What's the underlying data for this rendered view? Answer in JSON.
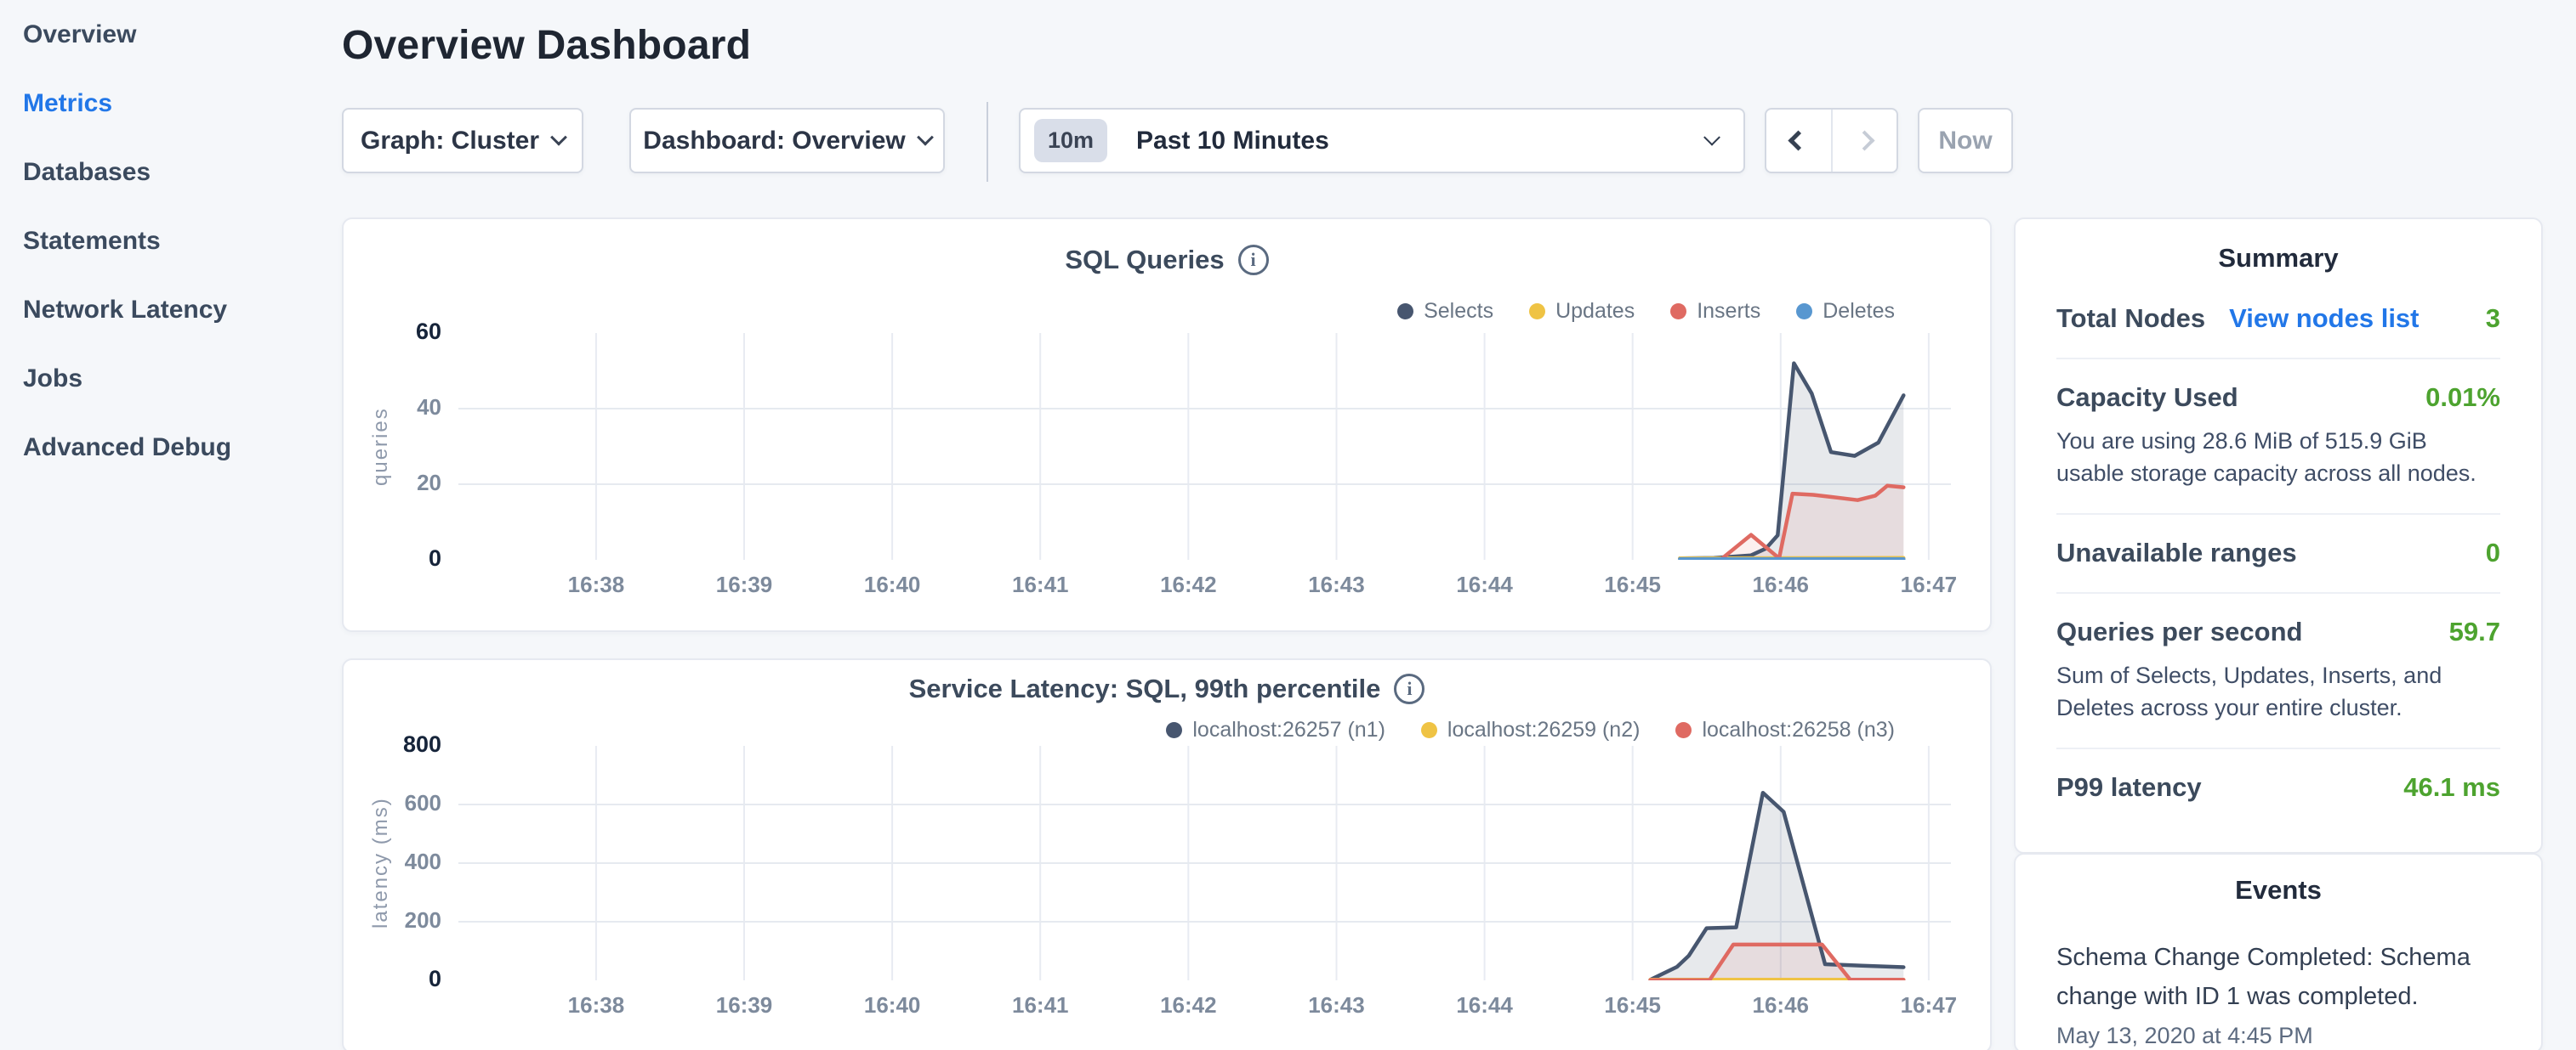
{
  "colors": {
    "accent_blue": "#2277e8",
    "value_green": "#4da32f",
    "series_dark": "#47566f",
    "series_yellow": "#efc344",
    "series_red": "#df6a62",
    "series_blue": "#5897d0",
    "page_background": "#f5f7fa"
  },
  "sidebar": {
    "items": [
      {
        "label": "Overview",
        "active": false
      },
      {
        "label": "Metrics",
        "active": true
      },
      {
        "label": "Databases",
        "active": false
      },
      {
        "label": "Statements",
        "active": false
      },
      {
        "label": "Network Latency",
        "active": false
      },
      {
        "label": "Jobs",
        "active": false
      },
      {
        "label": "Advanced Debug",
        "active": false
      }
    ]
  },
  "header": {
    "title": "Overview Dashboard"
  },
  "controls": {
    "graph_dropdown": "Graph: Cluster",
    "dashboard_dropdown": "Dashboard: Overview",
    "time_badge": "10m",
    "time_label": "Past 10 Minutes",
    "now_label": "Now"
  },
  "icons": {
    "info": "i"
  },
  "chart_data": [
    {
      "type": "area",
      "title": "SQL Queries",
      "ylabel": "queries",
      "ylim": [
        0,
        60
      ],
      "yticks": [
        0,
        20,
        40,
        60
      ],
      "xlim": [
        37.07,
        47.15
      ],
      "xticks": [
        {
          "v": 38,
          "label": "16:38"
        },
        {
          "v": 39,
          "label": "16:39"
        },
        {
          "v": 40,
          "label": "16:40"
        },
        {
          "v": 41,
          "label": "16:41"
        },
        {
          "v": 42,
          "label": "16:42"
        },
        {
          "v": 43,
          "label": "16:43"
        },
        {
          "v": 44,
          "label": "16:44"
        },
        {
          "v": 45,
          "label": "16:45"
        },
        {
          "v": 46,
          "label": "16:46"
        },
        {
          "v": 47,
          "label": "16:47"
        }
      ],
      "grid": true,
      "legend_position": "top-right",
      "series": [
        {
          "name": "Selects",
          "color": "#47566f",
          "fill": "rgba(71,86,111,0.13)",
          "points": [
            [
              45.32,
              0.4
            ],
            [
              45.55,
              0.5
            ],
            [
              45.8,
              1.2
            ],
            [
              45.9,
              3
            ],
            [
              45.98,
              6.5
            ],
            [
              46.09,
              52
            ],
            [
              46.21,
              44
            ],
            [
              46.34,
              28.5
            ],
            [
              46.5,
              27.5
            ],
            [
              46.66,
              31
            ],
            [
              46.83,
              43.5
            ]
          ]
        },
        {
          "name": "Updates",
          "color": "#efc344",
          "fill": null,
          "points": [
            [
              45.32,
              0.4
            ],
            [
              46.83,
              0.5
            ]
          ]
        },
        {
          "name": "Inserts",
          "color": "#df6a62",
          "fill": "rgba(223,106,98,0.10)",
          "points": [
            [
              45.6,
              0.2
            ],
            [
              45.8,
              6.6
            ],
            [
              45.99,
              0.4
            ],
            [
              46.08,
              17.5
            ],
            [
              46.22,
              17.2
            ],
            [
              46.35,
              16.6
            ],
            [
              46.52,
              15.8
            ],
            [
              46.64,
              17
            ],
            [
              46.72,
              19.6
            ],
            [
              46.83,
              19.2
            ]
          ]
        },
        {
          "name": "Deletes",
          "color": "#5897d0",
          "fill": null,
          "points": [
            [
              45.32,
              0.2
            ],
            [
              46.83,
              0.2
            ]
          ]
        }
      ]
    },
    {
      "type": "area",
      "title": "Service Latency: SQL, 99th percentile",
      "ylabel": "latency (ms)",
      "ylim": [
        0,
        800
      ],
      "yticks": [
        0,
        200,
        400,
        600,
        800
      ],
      "xlim": [
        37.07,
        47.15
      ],
      "xticks": [
        {
          "v": 38,
          "label": "16:38"
        },
        {
          "v": 39,
          "label": "16:39"
        },
        {
          "v": 40,
          "label": "16:40"
        },
        {
          "v": 41,
          "label": "16:41"
        },
        {
          "v": 42,
          "label": "16:42"
        },
        {
          "v": 43,
          "label": "16:43"
        },
        {
          "v": 44,
          "label": "16:44"
        },
        {
          "v": 45,
          "label": "16:45"
        },
        {
          "v": 46,
          "label": "16:46"
        },
        {
          "v": 47,
          "label": "16:47"
        }
      ],
      "grid": true,
      "legend_position": "top-right",
      "series": [
        {
          "name": "localhost:26257 (n1)",
          "color": "#47566f",
          "fill": "rgba(71,86,111,0.13)",
          "points": [
            [
              45.12,
              2
            ],
            [
              45.3,
              46
            ],
            [
              45.38,
              84
            ],
            [
              45.5,
              178
            ],
            [
              45.7,
              181
            ],
            [
              45.88,
              640
            ],
            [
              46.02,
              575
            ],
            [
              46.3,
              55
            ],
            [
              46.55,
              50
            ],
            [
              46.83,
              45
            ]
          ]
        },
        {
          "name": "localhost:26259 (n2)",
          "color": "#efc344",
          "fill": null,
          "points": [
            [
              45.12,
              2
            ],
            [
              46.83,
              2
            ]
          ]
        },
        {
          "name": "localhost:26258 (n3)",
          "color": "#df6a62",
          "fill": "rgba(223,106,98,0.10)",
          "points": [
            [
              45.12,
              1
            ],
            [
              45.52,
              1
            ],
            [
              45.68,
              122
            ],
            [
              46.28,
              122
            ],
            [
              46.47,
              2
            ],
            [
              46.83,
              2
            ]
          ]
        }
      ]
    }
  ],
  "summary": {
    "title": "Summary",
    "rows": [
      {
        "label": "Total Nodes",
        "link": "View nodes list",
        "value": "3"
      },
      {
        "label": "Capacity Used",
        "value": "0.01%",
        "description": "You are using 28.6 MiB of 515.9 GiB usable storage capacity across all nodes."
      },
      {
        "label": "Unavailable ranges",
        "value": "0"
      },
      {
        "label": "Queries per second",
        "value": "59.7",
        "description": "Sum of Selects, Updates, Inserts, and Deletes across your entire cluster."
      },
      {
        "label": "P99 latency",
        "value": "46.1 ms"
      }
    ]
  },
  "events": {
    "title": "Events",
    "items": [
      {
        "text": "Schema Change Completed: Schema change with ID 1 was completed.",
        "timestamp": "May 13, 2020 at 4:45 PM"
      }
    ]
  }
}
